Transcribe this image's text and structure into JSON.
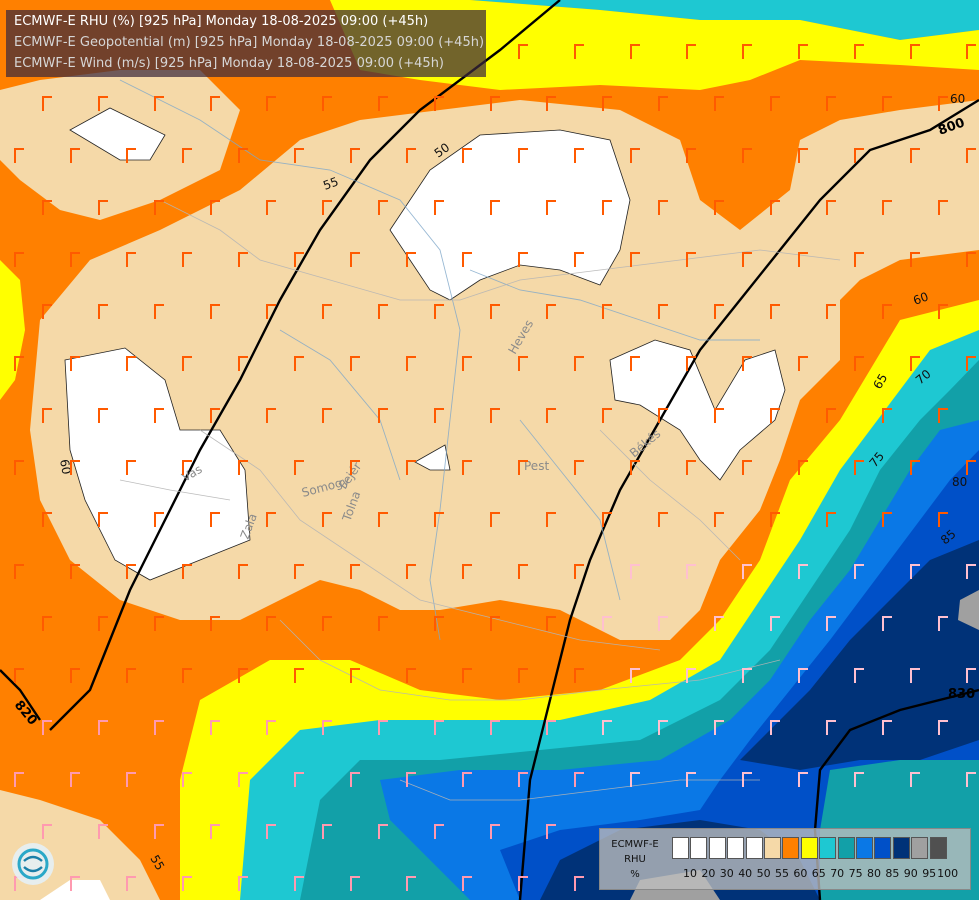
{
  "titles": {
    "line1": "ECMWF-E RHU (%) [925 hPa] Monday 18-08-2025 09:00 (+45h)",
    "line2": "ECMWF-E Geopotential (m) [925 hPa] Monday 18-08-2025 09:00 (+45h)",
    "line3": "ECMWF-E Wind (m/s) [925 hPa] Monday 18-08-2025 09:00 (+45h)"
  },
  "legend": {
    "label_line1": "ECMWF-E",
    "label_line2": "RHU",
    "label_line3": "%",
    "colors": [
      "#ffffff",
      "#ffffff",
      "#ffffff",
      "#ffffff",
      "#ffffff",
      "#f5d9a8",
      "#ff8000",
      "#ffff00",
      "#1ec8d2",
      "#12a0a8",
      "#0a78e6",
      "#0050c8",
      "#003278",
      "#a0a0a0",
      "#505050"
    ],
    "ticks": [
      "10",
      "20",
      "30",
      "40",
      "50",
      "55",
      "60",
      "65",
      "70",
      "75",
      "80",
      "85",
      "90",
      "95",
      "100"
    ]
  },
  "contour_labels": {
    "rhu": [
      "50",
      "55",
      "60",
      "60",
      "65",
      "70",
      "75",
      "80",
      "85",
      "55",
      "60"
    ],
    "geopotential": [
      "800",
      "820",
      "830"
    ]
  },
  "place_labels": [
    "Heves",
    "Pest",
    "Békés",
    "Vas",
    "Somogy",
    "Fejér",
    "Tolna",
    "Zala"
  ],
  "colors": {
    "white": "#ffffff",
    "tan": "#f5d9a8",
    "orange": "#ff8000",
    "yellow": "#ffff00",
    "cyan": "#1ec8d2",
    "teal": "#12a0a8",
    "blue": "#0a78e6",
    "darkblue": "#0050c8",
    "navy": "#003278",
    "gray": "#a0a0a0"
  },
  "icons": {
    "logo": "ecmwf-logo-icon"
  }
}
